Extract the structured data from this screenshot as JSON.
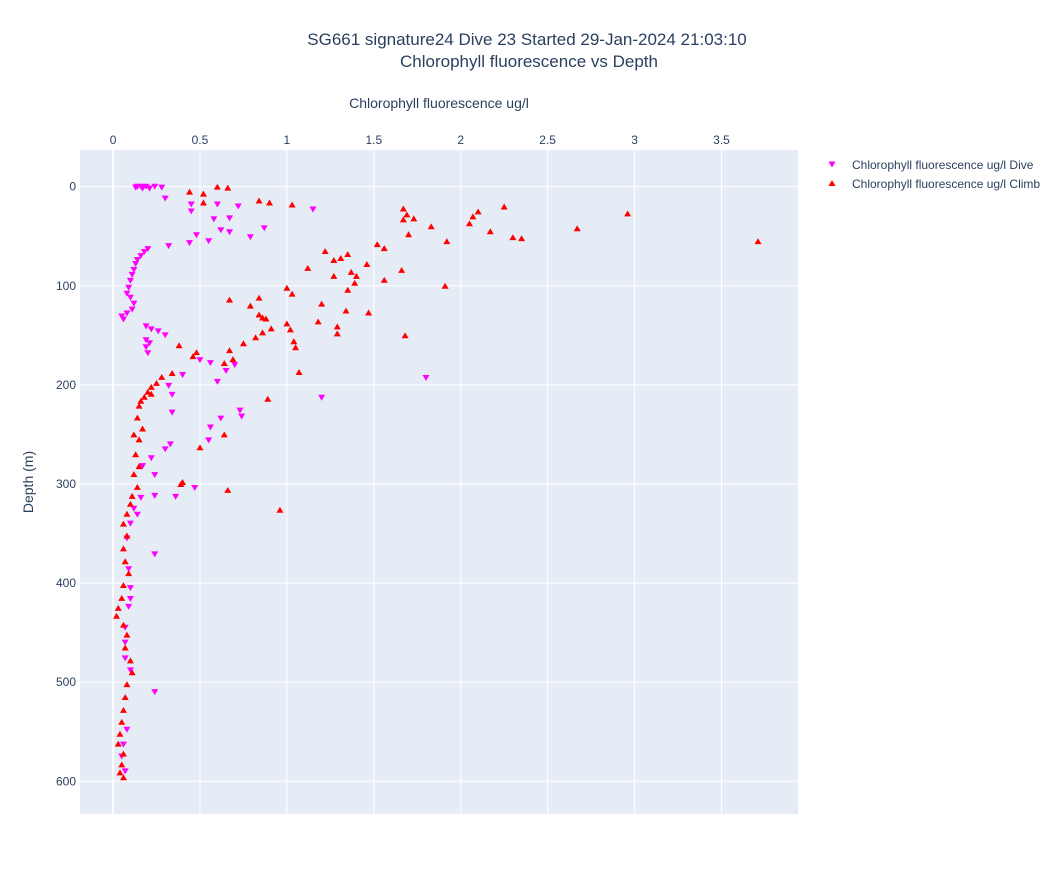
{
  "chart_data": {
    "type": "scatter",
    "title": "SG661 signature24 Dive 23 Started 29-Jan-2024 21:03:10",
    "subtitle": "Chlorophyll fluorescence vs Depth",
    "xlabel": "Chlorophyll fluorescence ug/l",
    "ylabel": "Depth (m)",
    "x_axis_position": "top",
    "y_axis_reversed": true,
    "xlim": [
      -0.19,
      3.94
    ],
    "ylim": [
      -37,
      633
    ],
    "xticks": [
      0,
      0.5,
      1,
      1.5,
      2,
      2.5,
      3,
      3.5
    ],
    "xtick_labels": [
      "0",
      "0.5",
      "1",
      "1.5",
      "2",
      "2.5",
      "3",
      "3.5"
    ],
    "yticks": [
      0,
      100,
      200,
      300,
      400,
      500,
      600
    ],
    "ytick_labels": [
      "0",
      "100",
      "200",
      "300",
      "400",
      "500",
      "600"
    ],
    "grid": true,
    "legend_position": "top-right",
    "series": [
      {
        "name": "Chlorophyll fluorescence ug/l Dive",
        "marker": "triangle-down",
        "color": "#ff00ff",
        "points": [
          [
            0.14,
            0
          ],
          [
            0.16,
            0
          ],
          [
            0.19,
            0
          ],
          [
            0.24,
            0
          ],
          [
            0.13,
            1
          ],
          [
            0.28,
            1
          ],
          [
            0.17,
            2
          ],
          [
            0.21,
            2
          ],
          [
            0.3,
            12
          ],
          [
            0.45,
            18
          ],
          [
            0.6,
            18
          ],
          [
            0.72,
            20
          ],
          [
            0.45,
            25
          ],
          [
            0.58,
            33
          ],
          [
            0.67,
            32
          ],
          [
            1.15,
            23
          ],
          [
            0.67,
            46
          ],
          [
            0.48,
            49
          ],
          [
            0.62,
            44
          ],
          [
            0.79,
            51
          ],
          [
            0.87,
            42
          ],
          [
            0.55,
            55
          ],
          [
            0.44,
            57
          ],
          [
            0.32,
            60
          ],
          [
            0.2,
            63
          ],
          [
            0.18,
            66
          ],
          [
            0.16,
            70
          ],
          [
            0.14,
            74
          ],
          [
            0.13,
            78
          ],
          [
            0.12,
            84
          ],
          [
            0.11,
            89
          ],
          [
            0.1,
            95
          ],
          [
            0.09,
            102
          ],
          [
            0.08,
            108
          ],
          [
            0.1,
            112
          ],
          [
            0.12,
            118
          ],
          [
            0.11,
            124
          ],
          [
            0.08,
            128
          ],
          [
            0.05,
            131
          ],
          [
            0.06,
            134
          ],
          [
            0.19,
            141
          ],
          [
            0.22,
            144
          ],
          [
            0.26,
            146
          ],
          [
            0.3,
            150
          ],
          [
            0.19,
            155
          ],
          [
            0.21,
            158
          ],
          [
            0.19,
            162
          ],
          [
            0.2,
            168
          ],
          [
            0.5,
            175
          ],
          [
            0.56,
            178
          ],
          [
            0.7,
            180
          ],
          [
            0.65,
            186
          ],
          [
            0.4,
            190
          ],
          [
            0.6,
            197
          ],
          [
            0.32,
            201
          ],
          [
            0.34,
            210
          ],
          [
            1.8,
            193
          ],
          [
            1.2,
            213
          ],
          [
            0.73,
            226
          ],
          [
            0.74,
            232
          ],
          [
            0.62,
            234
          ],
          [
            0.34,
            228
          ],
          [
            0.56,
            243
          ],
          [
            0.55,
            256
          ],
          [
            0.33,
            260
          ],
          [
            0.3,
            265
          ],
          [
            0.22,
            274
          ],
          [
            0.17,
            282
          ],
          [
            0.24,
            291
          ],
          [
            0.47,
            304
          ],
          [
            0.36,
            313
          ],
          [
            0.24,
            312
          ],
          [
            0.16,
            314
          ],
          [
            0.12,
            325
          ],
          [
            0.14,
            331
          ],
          [
            0.1,
            340
          ],
          [
            0.08,
            355
          ],
          [
            0.24,
            371
          ],
          [
            0.09,
            386
          ],
          [
            0.1,
            405
          ],
          [
            0.1,
            416
          ],
          [
            0.09,
            424
          ],
          [
            0.07,
            445
          ],
          [
            0.07,
            460
          ],
          [
            0.07,
            476
          ],
          [
            0.1,
            488
          ],
          [
            0.24,
            510
          ],
          [
            0.08,
            548
          ],
          [
            0.06,
            563
          ],
          [
            0.05,
            575
          ],
          [
            0.07,
            590
          ]
        ]
      },
      {
        "name": "Chlorophyll fluorescence ug/l Climb",
        "marker": "triangle-up",
        "color": "#ff0000",
        "points": [
          [
            0.6,
            0
          ],
          [
            0.66,
            1
          ],
          [
            0.44,
            5
          ],
          [
            0.52,
            7
          ],
          [
            0.84,
            14
          ],
          [
            0.9,
            16
          ],
          [
            1.03,
            18
          ],
          [
            0.52,
            16
          ],
          [
            1.67,
            22
          ],
          [
            2.25,
            20
          ],
          [
            2.1,
            25
          ],
          [
            1.69,
            28
          ],
          [
            1.73,
            32
          ],
          [
            1.67,
            33
          ],
          [
            2.07,
            30
          ],
          [
            2.05,
            37
          ],
          [
            1.7,
            48
          ],
          [
            1.83,
            40
          ],
          [
            2.17,
            45
          ],
          [
            2.3,
            51
          ],
          [
            2.35,
            52
          ],
          [
            2.67,
            42
          ],
          [
            2.96,
            27
          ],
          [
            3.71,
            55
          ],
          [
            1.92,
            55
          ],
          [
            1.52,
            58
          ],
          [
            1.56,
            62
          ],
          [
            1.22,
            65
          ],
          [
            1.35,
            68
          ],
          [
            1.31,
            72
          ],
          [
            1.27,
            74
          ],
          [
            1.46,
            78
          ],
          [
            1.66,
            84
          ],
          [
            1.12,
            82
          ],
          [
            1.37,
            86
          ],
          [
            1.4,
            90
          ],
          [
            1.56,
            94
          ],
          [
            1.39,
            97
          ],
          [
            1.27,
            90
          ],
          [
            1.35,
            104
          ],
          [
            1.91,
            100
          ],
          [
            1.0,
            102
          ],
          [
            1.03,
            108
          ],
          [
            0.84,
            112
          ],
          [
            0.67,
            114
          ],
          [
            0.79,
            120
          ],
          [
            1.2,
            118
          ],
          [
            1.34,
            125
          ],
          [
            1.47,
            127
          ],
          [
            0.84,
            129
          ],
          [
            0.86,
            132
          ],
          [
            0.88,
            133
          ],
          [
            1.18,
            136
          ],
          [
            1.0,
            138
          ],
          [
            1.02,
            144
          ],
          [
            0.91,
            143
          ],
          [
            1.29,
            141
          ],
          [
            1.29,
            148
          ],
          [
            0.86,
            147
          ],
          [
            0.82,
            152
          ],
          [
            1.68,
            150
          ],
          [
            1.04,
            156
          ],
          [
            1.05,
            162
          ],
          [
            0.38,
            160
          ],
          [
            0.75,
            158
          ],
          [
            0.67,
            165
          ],
          [
            0.48,
            167
          ],
          [
            0.46,
            171
          ],
          [
            0.69,
            174
          ],
          [
            0.64,
            178
          ],
          [
            1.07,
            187
          ],
          [
            0.34,
            188
          ],
          [
            0.28,
            192
          ],
          [
            0.25,
            198
          ],
          [
            0.22,
            202
          ],
          [
            0.2,
            207
          ],
          [
            0.18,
            212
          ],
          [
            0.16,
            216
          ],
          [
            0.15,
            221
          ],
          [
            0.22,
            209
          ],
          [
            0.89,
            214
          ],
          [
            0.64,
            250
          ],
          [
            0.5,
            263
          ],
          [
            0.4,
            298
          ],
          [
            0.39,
            300
          ],
          [
            0.66,
            306
          ],
          [
            0.96,
            326
          ],
          [
            0.17,
            244
          ],
          [
            0.14,
            233
          ],
          [
            0.12,
            250
          ],
          [
            0.15,
            255
          ],
          [
            0.13,
            270
          ],
          [
            0.15,
            282
          ],
          [
            0.12,
            290
          ],
          [
            0.14,
            303
          ],
          [
            0.11,
            312
          ],
          [
            0.1,
            320
          ],
          [
            0.08,
            330
          ],
          [
            0.06,
            340
          ],
          [
            0.08,
            352
          ],
          [
            0.06,
            365
          ],
          [
            0.07,
            378
          ],
          [
            0.09,
            390
          ],
          [
            0.06,
            402
          ],
          [
            0.05,
            415
          ],
          [
            0.03,
            425
          ],
          [
            0.02,
            433
          ],
          [
            0.06,
            442
          ],
          [
            0.08,
            452
          ],
          [
            0.07,
            465
          ],
          [
            0.1,
            478
          ],
          [
            0.11,
            490
          ],
          [
            0.08,
            502
          ],
          [
            0.07,
            515
          ],
          [
            0.06,
            528
          ],
          [
            0.05,
            540
          ],
          [
            0.04,
            552
          ],
          [
            0.03,
            562
          ],
          [
            0.06,
            572
          ],
          [
            0.05,
            583
          ],
          [
            0.04,
            591
          ],
          [
            0.06,
            596
          ]
        ]
      }
    ]
  }
}
